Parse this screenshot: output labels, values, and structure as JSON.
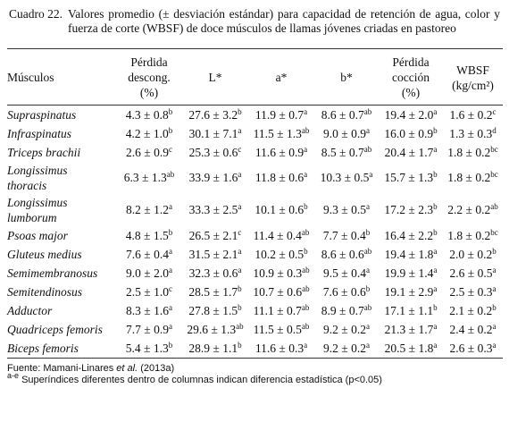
{
  "caption": {
    "label": "Cuadro 22.",
    "text": "Valores promedio (± desviación estándar) para capacidad de retención de agua, color y fuerza de corte (WBSF) de doce músculos de llamas jóvenes criadas en pastoreo"
  },
  "table": {
    "header": [
      [
        "Músculos"
      ],
      [
        "Pérdida",
        "descong.",
        "(%)"
      ],
      [
        "L*"
      ],
      [
        "a*"
      ],
      [
        "b*"
      ],
      [
        "Pérdida",
        "cocción",
        "(%)"
      ],
      [
        "WBSF",
        "(kg/cm²)"
      ]
    ],
    "rows": [
      {
        "name": [
          "Supraspinatus"
        ],
        "cells": [
          {
            "value": "4.3 ± 0.8",
            "sup": "b"
          },
          {
            "value": "27.6 ± 3.2",
            "sup": "b"
          },
          {
            "value": "11.9 ± 0.7",
            "sup": "a"
          },
          {
            "value": "8.6 ± 0.7",
            "sup": "ab"
          },
          {
            "value": "19.4 ± 2.0",
            "sup": "a"
          },
          {
            "value": "1.6 ± 0.2",
            "sup": "c"
          }
        ]
      },
      {
        "name": [
          "Infraspinatus"
        ],
        "cells": [
          {
            "value": "4.2 ± 1.0",
            "sup": "b"
          },
          {
            "value": "30.1 ± 7.1",
            "sup": "a"
          },
          {
            "value": "11.5 ± 1.3",
            "sup": "ab"
          },
          {
            "value": "9.0 ± 0.9",
            "sup": "a"
          },
          {
            "value": "16.0 ± 0.9",
            "sup": "b"
          },
          {
            "value": "1.3 ± 0.3",
            "sup": "d"
          }
        ]
      },
      {
        "name": [
          "Triceps brachii"
        ],
        "cells": [
          {
            "value": "2.6 ± 0.9",
            "sup": "c"
          },
          {
            "value": "25.3 ± 0.6",
            "sup": "c"
          },
          {
            "value": "11.6 ± 0.9",
            "sup": "a"
          },
          {
            "value": "8.5 ± 0.7",
            "sup": "ab"
          },
          {
            "value": "20.4 ± 1.7",
            "sup": "a"
          },
          {
            "value": "1.8 ± 0.2",
            "sup": "bc"
          }
        ]
      },
      {
        "name": [
          "Longissimus",
          "thoracis"
        ],
        "cells": [
          {
            "value": "6.3 ± 1.3",
            "sup": "ab"
          },
          {
            "value": "33.9 ± 1.6",
            "sup": "a"
          },
          {
            "value": "11.8 ± 0.6",
            "sup": "a"
          },
          {
            "value": "10.3 ± 0.5",
            "sup": "a"
          },
          {
            "value": "15.7 ± 1.3",
            "sup": "b"
          },
          {
            "value": "1.8 ± 0.2",
            "sup": "bc"
          }
        ]
      },
      {
        "name": [
          "Longissimus",
          "lumborum"
        ],
        "cells": [
          {
            "value": "8.2 ± 1.2",
            "sup": "a"
          },
          {
            "value": "33.3 ± 2.5",
            "sup": "a"
          },
          {
            "value": "10.1 ± 0.6",
            "sup": "b"
          },
          {
            "value": "9.3 ± 0.5",
            "sup": "a"
          },
          {
            "value": "17.2 ± 2.3",
            "sup": "b"
          },
          {
            "value": "2.2 ± 0.2",
            "sup": "ab"
          }
        ]
      },
      {
        "name": [
          "Psoas major"
        ],
        "cells": [
          {
            "value": "4.8 ± 1.5",
            "sup": "b"
          },
          {
            "value": "26.5 ± 2.1",
            "sup": "c"
          },
          {
            "value": "11.4 ± 0.4",
            "sup": "ab"
          },
          {
            "value": "7.7 ± 0.4",
            "sup": "b"
          },
          {
            "value": "16.4 ± 2.2",
            "sup": "b"
          },
          {
            "value": "1.8 ± 0.2",
            "sup": "bc"
          }
        ]
      },
      {
        "name": [
          "Gluteus medius"
        ],
        "cells": [
          {
            "value": "7.6 ± 0.4",
            "sup": "a"
          },
          {
            "value": "31.5 ± 2.1",
            "sup": "a"
          },
          {
            "value": "10.2 ± 0.5",
            "sup": "b"
          },
          {
            "value": "8.6 ± 0.6",
            "sup": "ab"
          },
          {
            "value": "19.4 ± 1.8",
            "sup": "a"
          },
          {
            "value": "2.0 ± 0.2",
            "sup": "b"
          }
        ]
      },
      {
        "name": [
          "Semimembranosus"
        ],
        "cells": [
          {
            "value": "9.0 ± 2.0",
            "sup": "a"
          },
          {
            "value": "32.3 ± 0.6",
            "sup": "a"
          },
          {
            "value": "10.9 ± 0.3",
            "sup": "ab"
          },
          {
            "value": "9.5 ± 0.4",
            "sup": "a"
          },
          {
            "value": "19.9 ± 1.4",
            "sup": "a"
          },
          {
            "value": "2.6 ± 0.5",
            "sup": "a"
          }
        ]
      },
      {
        "name": [
          "Semitendinosus"
        ],
        "cells": [
          {
            "value": "2.5 ± 1.0",
            "sup": "c"
          },
          {
            "value": "28.5 ± 1.7",
            "sup": "b"
          },
          {
            "value": "10.7 ± 0.6",
            "sup": "ab"
          },
          {
            "value": "7.6 ± 0.6",
            "sup": "b"
          },
          {
            "value": "19.1 ± 2.9",
            "sup": "a"
          },
          {
            "value": "2.5 ± 0.3",
            "sup": "a"
          }
        ]
      },
      {
        "name": [
          "Adductor"
        ],
        "cells": [
          {
            "value": "8.3 ± 1.6",
            "sup": "a"
          },
          {
            "value": "27.8 ± 1.5",
            "sup": "b"
          },
          {
            "value": "11.1 ± 0.7",
            "sup": "ab"
          },
          {
            "value": "8.9 ± 0.7",
            "sup": "ab"
          },
          {
            "value": "17.1 ± 1.1",
            "sup": "b"
          },
          {
            "value": "2.1 ± 0.2",
            "sup": "b"
          }
        ]
      },
      {
        "name": [
          "Quadriceps femoris"
        ],
        "cells": [
          {
            "value": "7.7 ± 0.9",
            "sup": "a"
          },
          {
            "value": "29.6 ± 1.3",
            "sup": "ab"
          },
          {
            "value": "11.5 ± 0.5",
            "sup": "ab"
          },
          {
            "value": "9.2 ± 0.2",
            "sup": "a"
          },
          {
            "value": "21.3 ± 1.7",
            "sup": "a"
          },
          {
            "value": "2.4 ± 0.2",
            "sup": "a"
          }
        ]
      },
      {
        "name": [
          "Biceps femoris"
        ],
        "cells": [
          {
            "value": "5.4 ± 1.3",
            "sup": "b"
          },
          {
            "value": "28.9 ± 1.1",
            "sup": "b"
          },
          {
            "value": "11.6 ± 0.3",
            "sup": "a"
          },
          {
            "value": "9.2 ± 0.2",
            "sup": "a"
          },
          {
            "value": "20.5 ± 1.8",
            "sup": "a"
          },
          {
            "value": "2.6 ± 0.3",
            "sup": "a"
          }
        ]
      }
    ]
  },
  "footnotes": {
    "source": {
      "before": "Fuente: Mamani-Linares",
      "italic": "et al.",
      "after": "(2013a)"
    },
    "note": {
      "sup": "a-e",
      "text": "Superíndices diferentes dentro de columnas indican diferencia estadística (p<0.05)"
    }
  }
}
